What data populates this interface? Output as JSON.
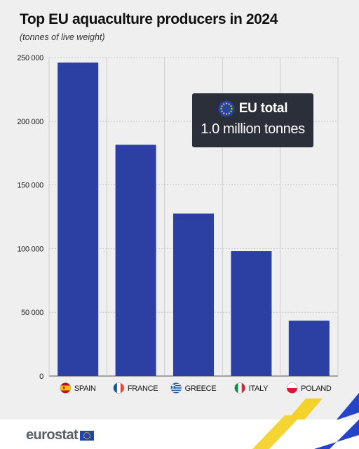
{
  "header": {
    "title": "Top EU aquaculture producers in 2024",
    "subtitle": "(tonnes of live weight)"
  },
  "callout": {
    "label": "EU total",
    "value": "1.0 million tonnes",
    "icon": "eu-flag-icon"
  },
  "footer": {
    "logo_text": "eurostat",
    "logo_icon": "eu-flag-icon"
  },
  "colors": {
    "bar": "#2c3fa3",
    "background": "#efefef",
    "callout_bg": "#2b2f3a"
  },
  "chart_data": {
    "type": "bar",
    "title": "Top EU aquaculture producers in 2024",
    "subtitle": "(tonnes of live weight)",
    "categories": [
      "SPAIN",
      "FRANCE",
      "GREECE",
      "ITALY",
      "POLAND"
    ],
    "flags": [
      "flag-spain-icon",
      "flag-france-icon",
      "flag-greece-icon",
      "flag-italy-icon",
      "flag-poland-icon"
    ],
    "values": [
      246000,
      181500,
      127500,
      98000,
      43500
    ],
    "yticks": [
      0,
      50000,
      100000,
      150000,
      200000,
      250000
    ],
    "ytick_labels": [
      "0",
      "50 000",
      "100 000",
      "150 000",
      "200 000",
      "250 000"
    ],
    "ylim": [
      0,
      250000
    ],
    "grid": true
  }
}
